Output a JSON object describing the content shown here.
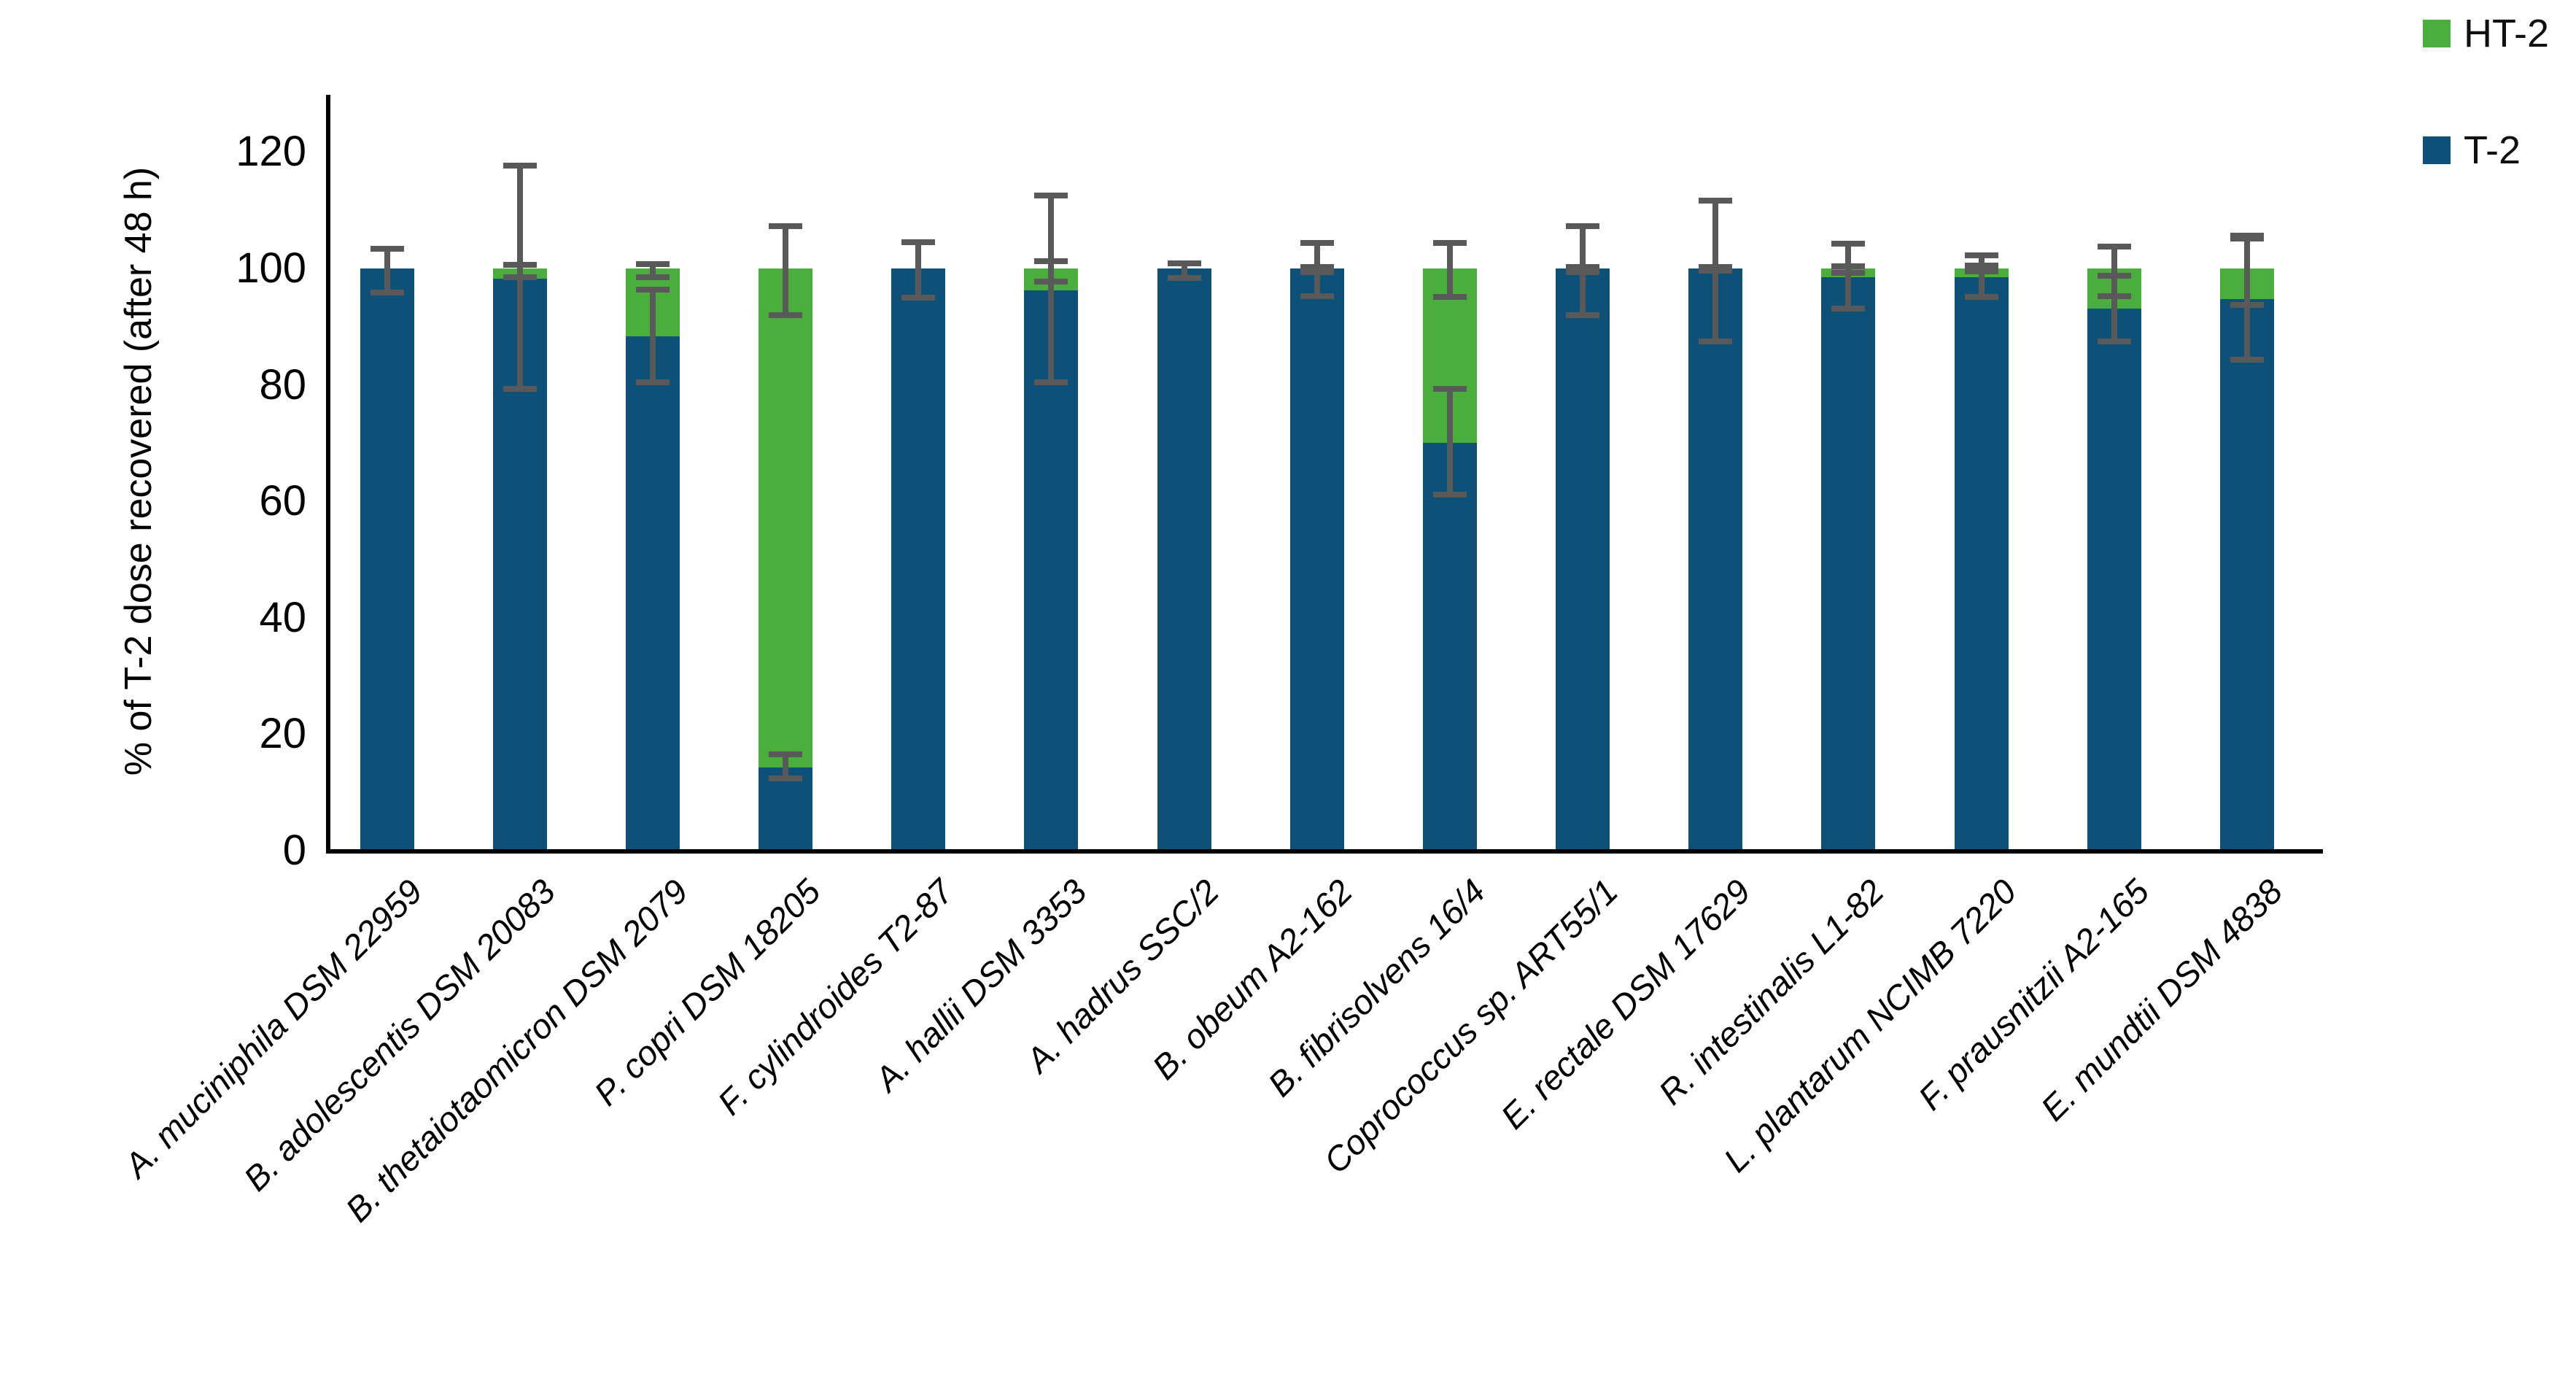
{
  "chart_data": {
    "type": "bar",
    "stacked": true,
    "title": "",
    "xlabel": "",
    "ylabel": "% of T-2 dose recovered (after 48 h)",
    "ylim": [
      0,
      126
    ],
    "yticks": [
      0,
      20,
      40,
      60,
      80,
      100,
      120
    ],
    "grid": false,
    "legend_position": "top-right",
    "error_color": "#595959",
    "categories": [
      "A. muciniphila DSM 22959",
      "B. adolescentis DSM 20083",
      "B. thetaiotaomicron DSM 2079",
      "P. copri DSM 18205",
      "F. cylindroides T2-87",
      "A. hallii DSM 3353",
      "A. hadrus SSC/2",
      "B. obeum A2-162",
      "B. fibrisolvens 16/4",
      "Coprococcus sp. ART55/1",
      "E. rectale DSM 17629",
      "R. intestinalis L1-82",
      "L. plantarum NCIMB 7220",
      "F. prausnitzii A2-165",
      "E. mundtii DSM 4838"
    ],
    "series": [
      {
        "name": "HT-2",
        "color": "#4aae3c",
        "values": [
          0,
          1.8,
          11.7,
          85.7,
          0,
          3.7,
          0,
          0,
          30,
          0,
          0,
          1.5,
          1.5,
          6.9,
          5.3
        ]
      },
      {
        "name": "T-2",
        "color": "#0d5078",
        "values": [
          100,
          98.2,
          88.3,
          14.3,
          100,
          96.3,
          100,
          100,
          70,
          100,
          100,
          98.5,
          98.5,
          93.1,
          94.7
        ]
      }
    ],
    "error_bars": {
      "t2": [
        [
          95.9,
          103.4
        ],
        [
          79.3,
          117.7
        ],
        [
          80.5,
          96.4
        ],
        [
          12.4,
          16.6
        ],
        [
          95.0,
          104.5
        ],
        [
          80.5,
          112.5
        ],
        [
          98.4,
          100.9
        ],
        [
          95.3,
          104.4
        ],
        [
          61.1,
          79.3
        ],
        [
          92.0,
          107.3
        ],
        [
          87.5,
          111.6
        ],
        [
          93.1,
          104.2
        ],
        [
          95.1,
          102.3
        ],
        [
          87.5,
          98.7
        ],
        [
          84.3,
          105.2
        ]
      ],
      "ht2": [
        null,
        [
          98.5,
          100.6
        ],
        [
          98.5,
          100.8
        ],
        [
          92.0,
          107.3
        ],
        null,
        [
          97.8,
          101.3
        ],
        null,
        [
          99.4,
          100.2
        ],
        [
          95.1,
          104.4
        ],
        [
          99.4,
          100.2
        ],
        [
          99.6,
          100.3
        ],
        [
          99.3,
          100.4
        ],
        [
          99.5,
          100.5
        ],
        [
          95.3,
          103.7
        ],
        [
          93.7,
          105.6
        ]
      ]
    }
  }
}
